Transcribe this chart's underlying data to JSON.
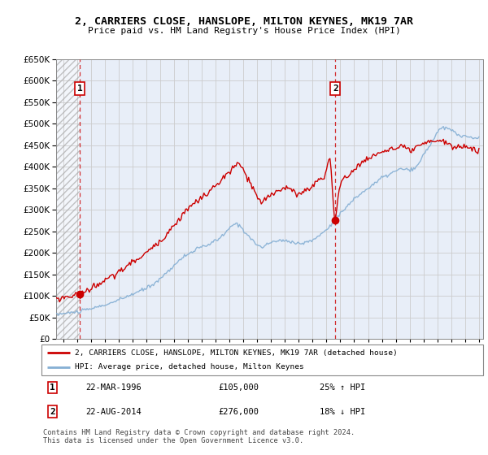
{
  "title": "2, CARRIERS CLOSE, HANSLOPE, MILTON KEYNES, MK19 7AR",
  "subtitle": "Price paid vs. HM Land Registry's House Price Index (HPI)",
  "legend_line1": "2, CARRIERS CLOSE, HANSLOPE, MILTON KEYNES, MK19 7AR (detached house)",
  "legend_line2": "HPI: Average price, detached house, Milton Keynes",
  "sale1_date": "22-MAR-1996",
  "sale1_price": "£105,000",
  "sale1_hpi": "25% ↑ HPI",
  "sale2_date": "22-AUG-2014",
  "sale2_price": "£276,000",
  "sale2_hpi": "18% ↓ HPI",
  "footer": "Contains HM Land Registry data © Crown copyright and database right 2024.\nThis data is licensed under the Open Government Licence v3.0.",
  "sale1_x": 1996.22,
  "sale1_y": 105000,
  "sale2_x": 2014.64,
  "sale2_y": 276000,
  "price_color": "#cc0000",
  "hpi_color": "#85afd4",
  "grid_color": "#cccccc",
  "background_color": "#e8eef8",
  "ylim": [
    0,
    650000
  ],
  "xlim_left": 1994.5,
  "xlim_right": 2025.3
}
